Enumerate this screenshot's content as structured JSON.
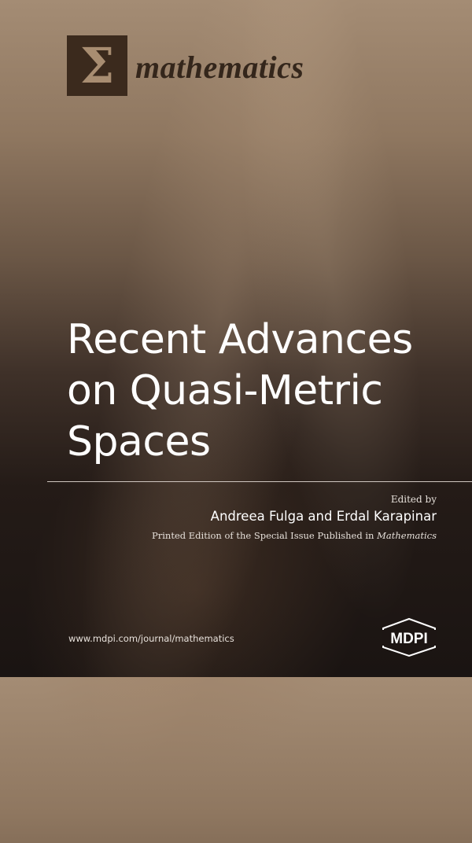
{
  "cover": {
    "journal_logo_symbol": "Σ",
    "journal_name": "mathematics",
    "title_lines": [
      "Recent Advances",
      "on Quasi-Metric",
      "Spaces"
    ],
    "edited_by": "Edited by",
    "editors": "Andreea Fulga and Erdal Karapinar",
    "printed_edition_prefix": "Printed Edition of the Special Issue Published in ",
    "printed_edition_journal": "Mathematics",
    "url": "www.mdpi.com/journal/mathematics",
    "publisher_logo": "MDPI"
  },
  "colors": {
    "logo_box": "#3b2a1d",
    "background_top": "#a48c74",
    "background_bottom": "#1a1412",
    "title": "#ffffff"
  }
}
